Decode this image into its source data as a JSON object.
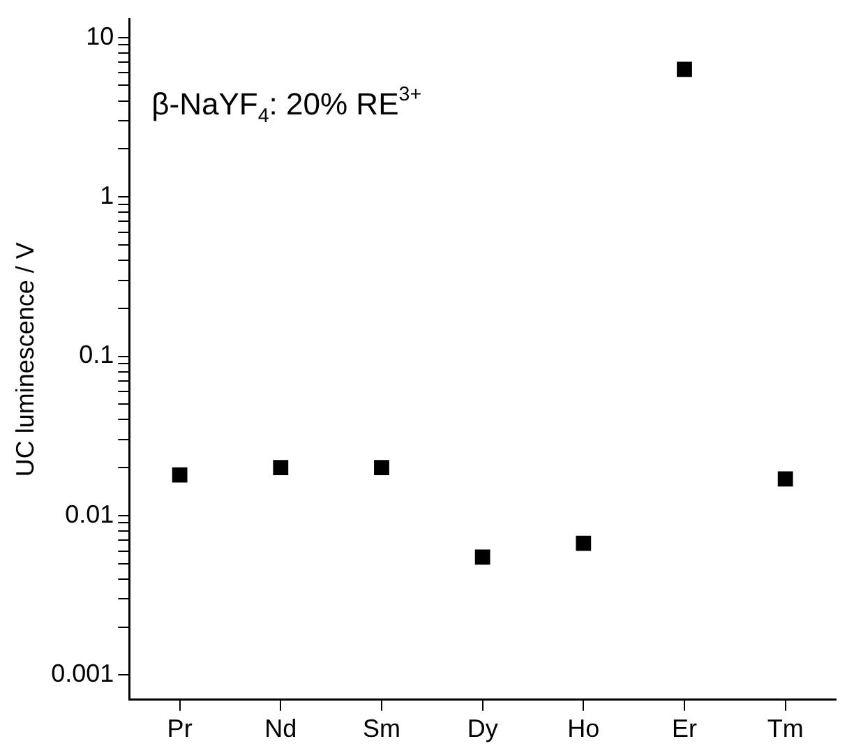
{
  "chart_data": {
    "type": "scatter",
    "ylabel": "UC luminescence / V",
    "annotations": [
      "β-NaYF$_{4}$: 20% RE$^{3+}$"
    ],
    "categories": [
      "Pr",
      "Nd",
      "Sm",
      "Dy",
      "Ho",
      "Er",
      "Tm"
    ],
    "series": [
      {
        "color": "#000000",
        "values": [
          0.018,
          0.02,
          0.02,
          0.0055,
          0.0067,
          6.3,
          0.017
        ]
      }
    ],
    "log": "y",
    "ylim": [
      0.0007,
      13
    ],
    "yticks": [
      0.001,
      {
        "value": 0.002,
        "label": null
      },
      {
        "value": 0.003,
        "label": null
      },
      {
        "value": 0.004,
        "label": null
      },
      {
        "value": 0.005,
        "label": null
      },
      {
        "value": 0.006,
        "label": null
      },
      {
        "value": 0.007,
        "label": null
      },
      {
        "value": 0.008,
        "label": null
      },
      {
        "value": 0.009,
        "label": null
      },
      0.01,
      {
        "value": 0.02,
        "label": null
      },
      {
        "value": 0.03,
        "label": null
      },
      {
        "value": 0.04,
        "label": null
      },
      {
        "value": 0.05,
        "label": null
      },
      {
        "value": 0.06,
        "label": null
      },
      {
        "value": 0.07,
        "label": null
      },
      {
        "value": 0.08,
        "label": null
      },
      {
        "value": 0.09,
        "label": null
      },
      0.1,
      {
        "value": 0.2,
        "label": null
      },
      {
        "value": 0.3,
        "label": null
      },
      {
        "value": 0.4,
        "label": null
      },
      {
        "value": 0.5,
        "label": null
      },
      {
        "value": 0.6,
        "label": null
      },
      {
        "value": 0.7,
        "label": null
      },
      {
        "value": 0.8,
        "label": null
      },
      {
        "value": 0.9,
        "label": null
      },
      1,
      {
        "value": 2,
        "label": null
      },
      {
        "value": 3,
        "label": null
      },
      {
        "value": 4,
        "label": null
      },
      {
        "value": 5,
        "label": null
      },
      {
        "value": 6,
        "label": null
      },
      {
        "value": 7,
        "label": null
      },
      {
        "value": 8,
        "label": null
      },
      {
        "value": 9,
        "label": null
      },
      10
    ],
    "grid": false,
    "legend": false,
    "marker": "square"
  }
}
